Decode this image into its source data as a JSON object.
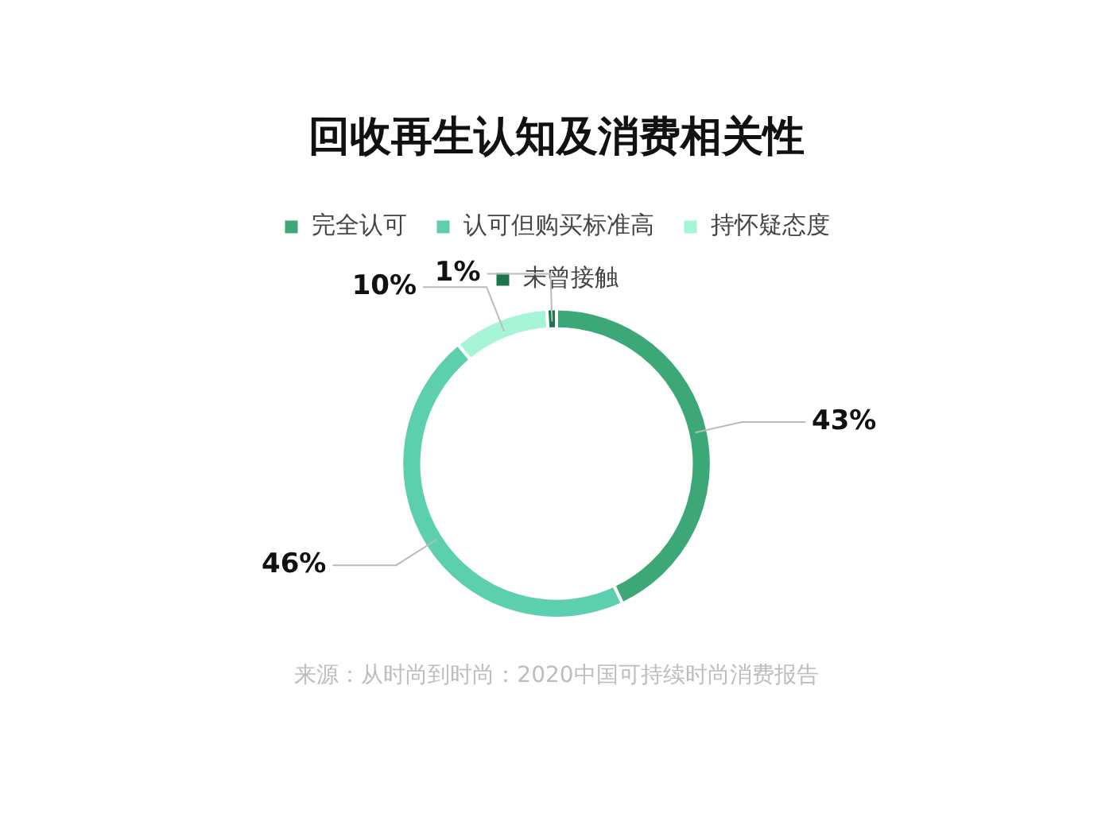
{
  "chart_data": {
    "type": "donut",
    "title": "回收再生认知及消费相关性",
    "categories": [
      "完全认可",
      "认可但购买标准高",
      "持怀疑态度",
      "未曾接触"
    ],
    "values": [
      43,
      46,
      10,
      1
    ],
    "colors": [
      "#3ca877",
      "#5ccfae",
      "#a6f5d6",
      "#17774a"
    ],
    "value_labels": [
      "43%",
      "46%",
      "10%",
      "1%"
    ],
    "legend": "top",
    "annotations": [
      "来源：从时尚到时尚：2020中国可持续时尚消费报告"
    ]
  }
}
